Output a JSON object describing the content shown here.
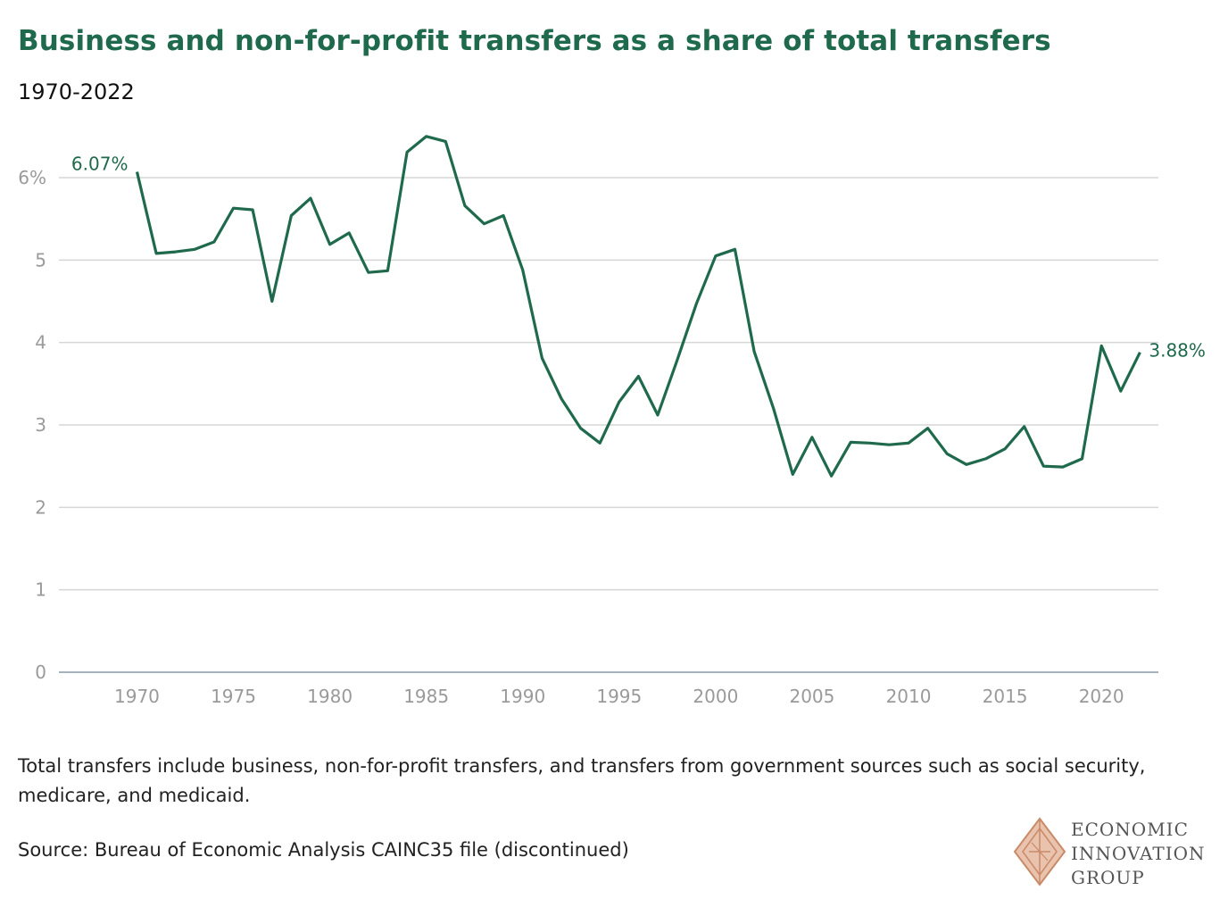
{
  "header": {
    "title": "Business and non-for-profit transfers as a share of total transfers",
    "subtitle": "1970-2022"
  },
  "footer": {
    "note": "Total transfers include business, non-for-profit transfers, and transfers from government sources such as social security, medicare, and medicaid.",
    "source": "Source: Bureau of Economic Analysis CAINC35 file (discontinued)"
  },
  "logo": {
    "icon": "diamond-logo-icon",
    "lines": [
      "ECONOMIC",
      "INNOVATION",
      "GROUP"
    ]
  },
  "chart_data": {
    "type": "line",
    "title": "Business and non-for-profit transfers as a share of total transfers",
    "subtitle": "1970-2022",
    "xlabel": "",
    "ylabel": "",
    "xlim": [
      1966,
      2023
    ],
    "ylim": [
      0,
      6
    ],
    "x_ticks": [
      1970,
      1975,
      1980,
      1985,
      1990,
      1995,
      2000,
      2005,
      2010,
      2015,
      2020
    ],
    "y_ticks": [
      0,
      1,
      2,
      3,
      4,
      5,
      6
    ],
    "y_tick_labels": [
      "0",
      "1",
      "2",
      "3",
      "4",
      "5",
      "6%"
    ],
    "grid": "horizontal",
    "color": "#1f6a4c",
    "annotations": [
      {
        "x": 1970,
        "y": 6.07,
        "text": "6.07%"
      },
      {
        "x": 2022,
        "y": 3.88,
        "text": "3.88%"
      }
    ],
    "x": [
      1970,
      1971,
      1972,
      1973,
      1974,
      1975,
      1976,
      1977,
      1978,
      1979,
      1980,
      1981,
      1982,
      1983,
      1984,
      1985,
      1986,
      1987,
      1988,
      1989,
      1990,
      1991,
      1992,
      1993,
      1994,
      1995,
      1996,
      1997,
      1998,
      1999,
      2000,
      2001,
      2002,
      2003,
      2004,
      2005,
      2006,
      2007,
      2008,
      2009,
      2010,
      2011,
      2012,
      2013,
      2014,
      2015,
      2016,
      2017,
      2018,
      2019,
      2020,
      2021,
      2022
    ],
    "values": [
      6.07,
      5.08,
      5.1,
      5.13,
      5.22,
      5.63,
      5.61,
      4.5,
      5.54,
      5.75,
      5.19,
      5.33,
      4.85,
      4.87,
      6.31,
      6.5,
      6.44,
      5.66,
      5.44,
      5.54,
      4.88,
      3.81,
      3.32,
      2.96,
      2.78,
      3.28,
      3.59,
      3.12,
      3.78,
      4.47,
      5.05,
      5.13,
      3.89,
      3.2,
      2.4,
      2.85,
      2.38,
      2.79,
      2.78,
      2.76,
      2.78,
      2.96,
      2.65,
      2.52,
      2.59,
      2.71,
      2.98,
      2.5,
      2.49,
      2.59,
      3.96,
      3.41,
      3.88
    ]
  }
}
